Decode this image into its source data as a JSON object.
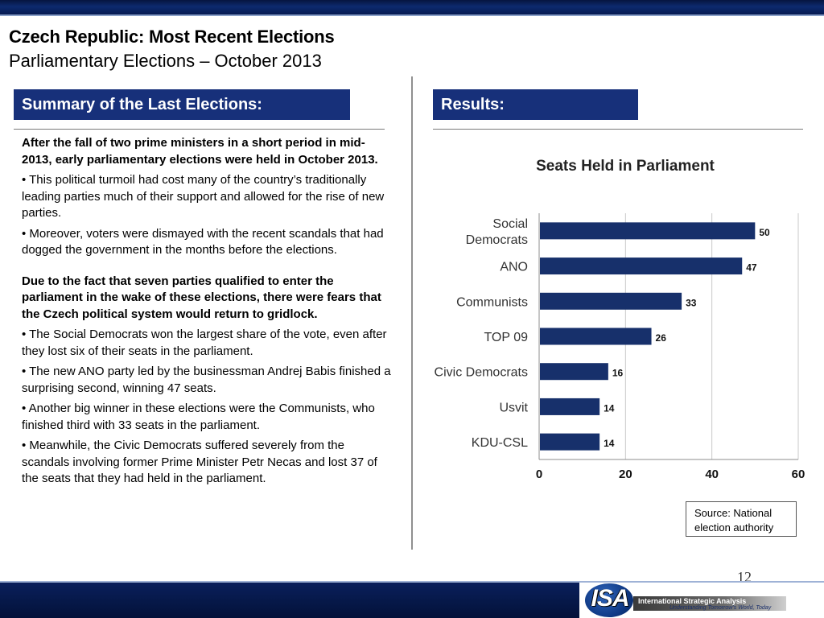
{
  "header": {
    "title": "Czech Republic: Most Recent Elections",
    "subtitle": "Parliamentary Elections – October 2013"
  },
  "left_panel": {
    "heading": "Summary of the Last Elections:",
    "paragraphs": [
      "After the fall of two prime ministers in a short period in mid-2013, early parliamentary elections were held in October 2013.",
      "• This political turmoil had cost many of the country’s traditionally leading parties much of their support and allowed for the rise of new parties.",
      "• Moreover, voters were dismayed with the recent scandals that had dogged the government in the months before the elections.",
      "Due to the fact that seven parties qualified to enter the parliament in the wake of these elections, there were fears that the Czech political system would return to gridlock.",
      "• The Social Democrats won the largest share of the vote, even after they lost six of their seats in the parliament.",
      "• The new ANO party led by the businessman Andrej Babis finished a surprising second, winning 47 seats.",
      "• Another big winner in these elections were the Communists, who finished third with 33 seats in the parliament.",
      "• Meanwhile, the Civic Democrats suffered severely from the scandals involving former Prime Minister Petr Necas and lost 37 of the seats that they had held in the parliament."
    ]
  },
  "right_panel": {
    "heading": "Results:",
    "source_note": "Source: National election authority"
  },
  "chart_data": {
    "type": "bar",
    "orientation": "horizontal",
    "title": "Seats Held in Parliament",
    "categories": [
      "Social Democrats",
      "ANO",
      "Communists",
      "TOP 09",
      "Civic Democrats",
      "Usvit",
      "KDU-CSL"
    ],
    "category_lines": [
      [
        "Social",
        "Democrats"
      ],
      [
        "ANO"
      ],
      [
        "Communists"
      ],
      [
        "TOP 09"
      ],
      [
        "Civic Democrats"
      ],
      [
        "Usvit"
      ],
      [
        "KDU-CSL"
      ]
    ],
    "values": [
      50,
      47,
      33,
      26,
      16,
      14,
      14
    ],
    "xlim": [
      0,
      60
    ],
    "xticks": [
      "0",
      "20",
      "40",
      "60"
    ],
    "xlabel": "",
    "ylabel": "",
    "grid": "vertical",
    "bar_color": "#17306b",
    "data_labels": true
  },
  "footer": {
    "page_number": "12",
    "logo_mark": "ISA",
    "logo_name": "International Strategic Analysis",
    "logo_tagline": "Understanding Tomorrow’s World, Today"
  },
  "colors": {
    "accent": "#17307a",
    "bar": "#17306b"
  }
}
